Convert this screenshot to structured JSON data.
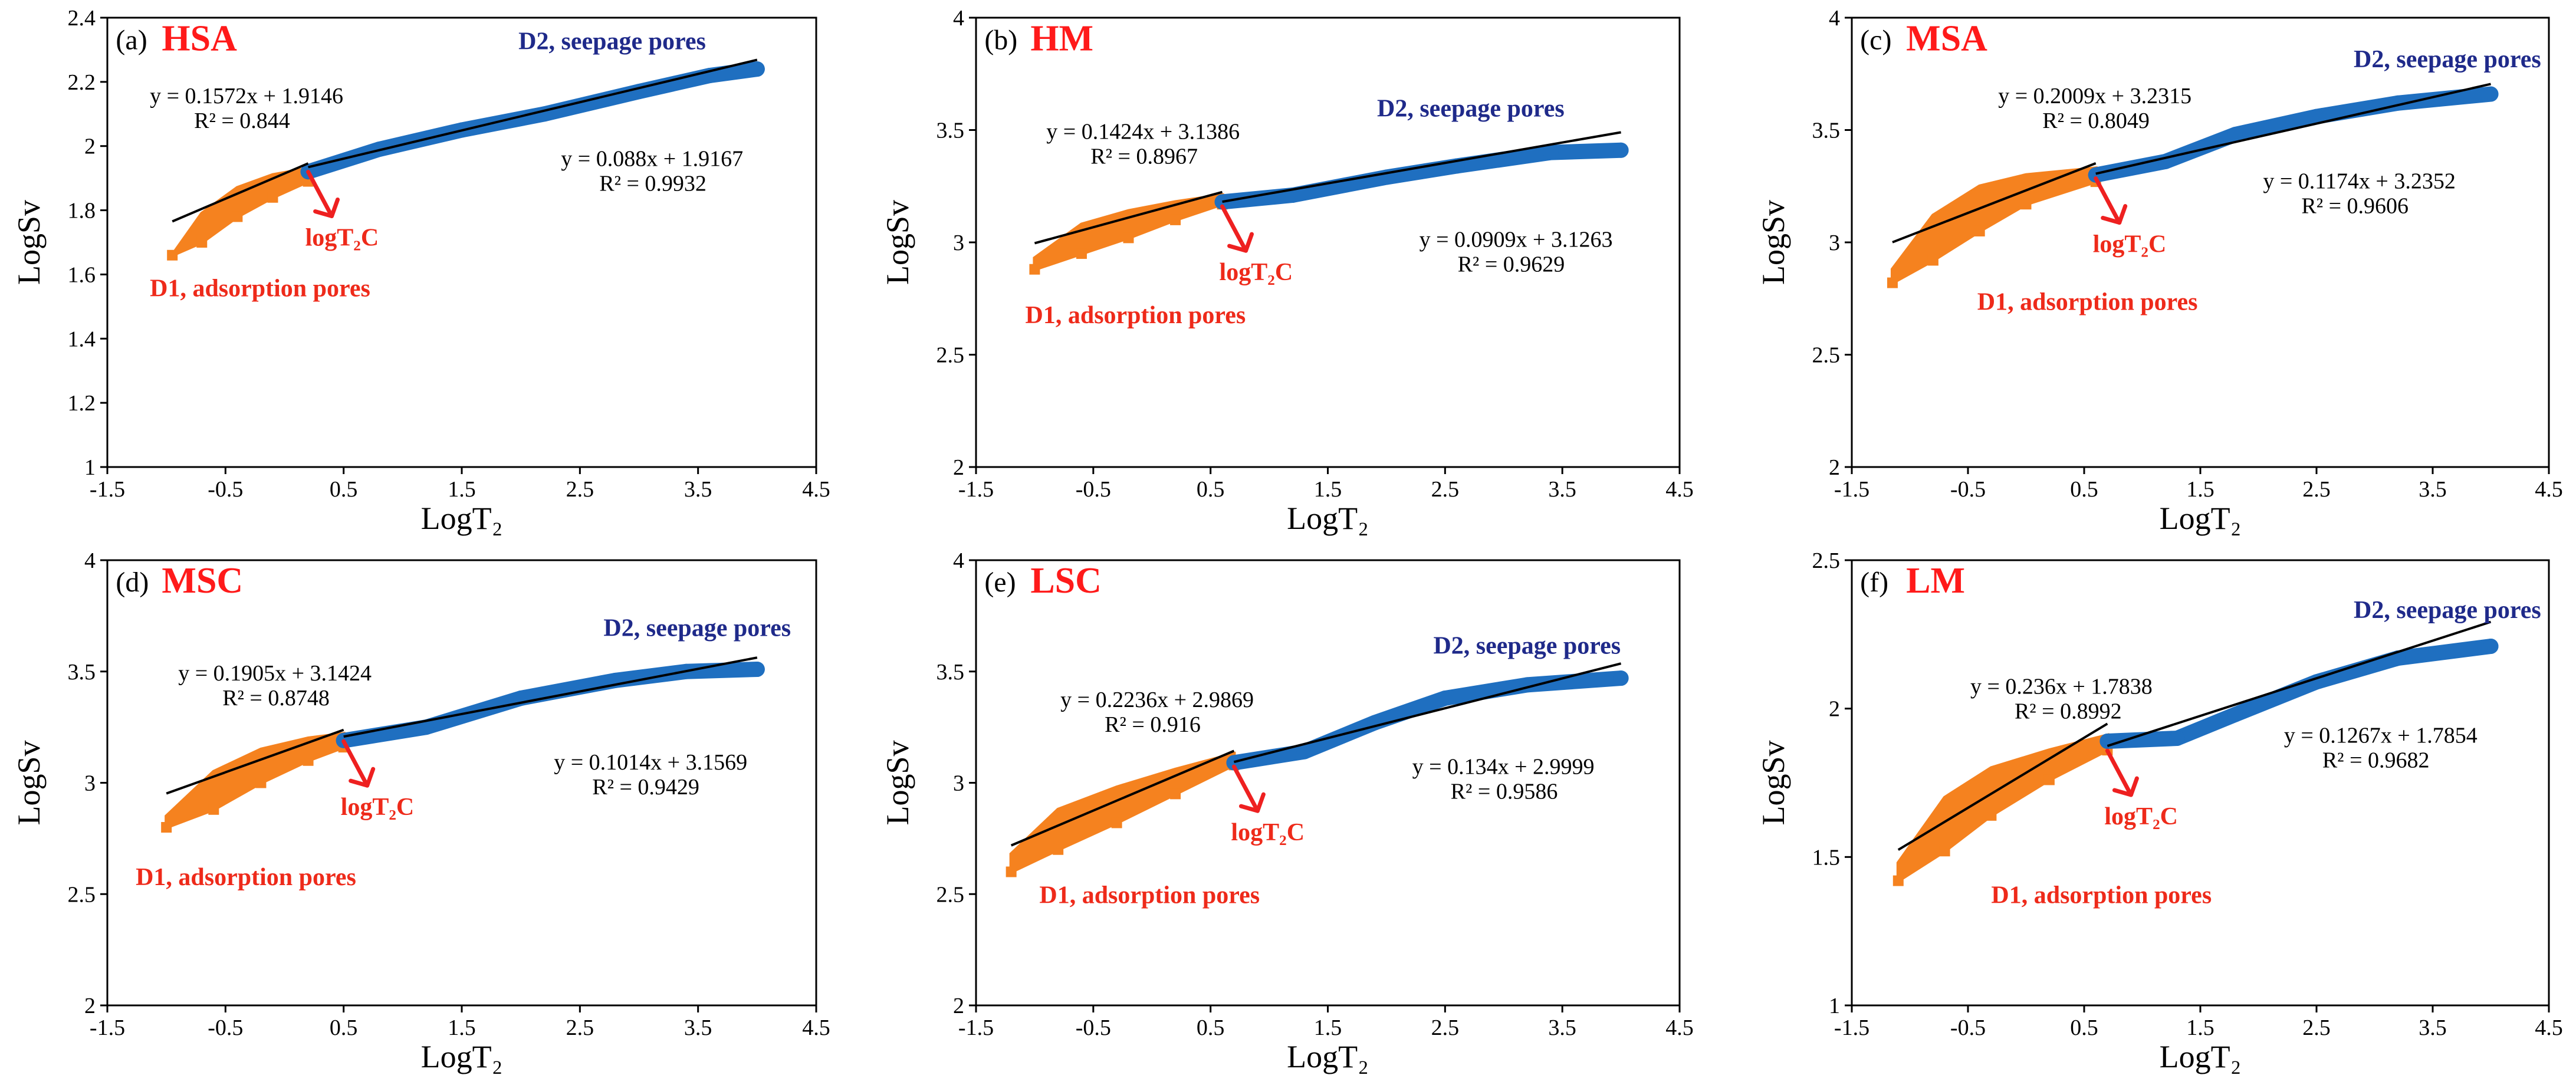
{
  "chart_data": [
    {
      "type": "scatter",
      "panel_label": "(a)",
      "title": "HSA",
      "xlabel": "LogT₂",
      "ylabel": "LogSv",
      "xlim": [
        -1.5,
        4.5
      ],
      "ylim": [
        1,
        2.4
      ],
      "xticks": [
        "-1.5",
        "-0.5",
        "0.5",
        "1.5",
        "2.5",
        "3.5",
        "4.5"
      ],
      "yticks": [
        "1",
        "1.2",
        "1.4",
        "1.6",
        "1.8",
        "2",
        "2.2",
        "2.4"
      ],
      "break_x": 0.2,
      "series": [
        {
          "name": "D1, adsorption pores",
          "color": "#f5821f",
          "x": [
            -0.95,
            -0.7,
            -0.4,
            -0.1,
            0.2
          ],
          "y": [
            1.66,
            1.79,
            1.87,
            1.91,
            1.93
          ],
          "y_low": [
            1.66,
            1.7,
            1.78,
            1.84,
            1.89
          ]
        },
        {
          "name": "D2, seepage pores",
          "color": "#1f6fc0",
          "x": [
            0.2,
            0.8,
            1.5,
            2.2,
            3.0,
            3.6,
            4.0
          ],
          "y": [
            1.92,
            1.99,
            2.05,
            2.1,
            2.17,
            2.22,
            2.24
          ]
        }
      ],
      "fits": [
        {
          "slope": 0.1572,
          "intercept": 1.9146,
          "x_range": [
            -0.95,
            0.2
          ],
          "equation": "y = 0.1572x + 1.9146",
          "r2": "R² = 0.844"
        },
        {
          "slope": 0.088,
          "intercept": 1.9167,
          "x_range": [
            0.2,
            4.0
          ],
          "equation": "y = 0.088x + 1.9167",
          "r2": "R² = 0.9932"
        }
      ],
      "d2_label": "D2,  seepage pores",
      "d1_label": "D1,  adsorption pores",
      "tc_label": "logT₂C"
    },
    {
      "type": "scatter",
      "panel_label": "(b)",
      "title": "HM",
      "xlabel": "LogT₂",
      "ylabel": "LogSv",
      "xlim": [
        -1.5,
        4.5
      ],
      "ylim": [
        2,
        4
      ],
      "xticks": [
        "-1.5",
        "-0.5",
        "0.5",
        "1.5",
        "2.5",
        "3.5",
        "4.5"
      ],
      "yticks": [
        "2",
        "2.5",
        "3",
        "3.5",
        "4"
      ],
      "break_x": 0.6,
      "series": [
        {
          "name": "D1, adsorption pores",
          "color": "#f5821f",
          "x": [
            -1.0,
            -0.6,
            -0.2,
            0.2,
            0.6
          ],
          "y": [
            2.93,
            3.08,
            3.14,
            3.18,
            3.21
          ],
          "y_low": [
            2.88,
            2.95,
            3.02,
            3.1,
            3.17
          ]
        },
        {
          "name": "D2, seepage pores",
          "color": "#1f6fc0",
          "x": [
            0.6,
            1.2,
            2.0,
            2.6,
            3.4,
            4.0
          ],
          "y": [
            3.18,
            3.21,
            3.29,
            3.34,
            3.4,
            3.41
          ]
        }
      ],
      "fits": [
        {
          "slope": 0.1424,
          "intercept": 3.1386,
          "x_range": [
            -1.0,
            0.6
          ],
          "equation": "y = 0.1424x + 3.1386",
          "r2": "R² = 0.8967"
        },
        {
          "slope": 0.0909,
          "intercept": 3.1263,
          "x_range": [
            0.6,
            4.0
          ],
          "equation": "y = 0.0909x + 3.1263",
          "r2": "R² = 0.9629"
        }
      ],
      "d2_label": "D2,  seepage pores",
      "d1_label": "D1,  adsorption pores",
      "tc_label": "logT₂C"
    },
    {
      "type": "scatter",
      "panel_label": "(c)",
      "title": "MSA",
      "xlabel": "LogT₂",
      "ylabel": "LogSv",
      "xlim": [
        -1.5,
        4.5
      ],
      "ylim": [
        2,
        4
      ],
      "xticks": [
        "-1.5",
        "-0.5",
        "0.5",
        "1.5",
        "2.5",
        "3.5",
        "4.5"
      ],
      "yticks": [
        "2",
        "2.5",
        "3",
        "3.5",
        "4"
      ],
      "break_x": 0.6,
      "series": [
        {
          "name": "D1, adsorption pores",
          "color": "#f5821f",
          "x": [
            -1.15,
            -0.8,
            -0.4,
            0.0,
            0.6
          ],
          "y": [
            2.88,
            3.12,
            3.25,
            3.3,
            3.33
          ],
          "y_low": [
            2.82,
            2.92,
            3.05,
            3.17,
            3.27
          ]
        },
        {
          "name": "D2, seepage pores",
          "color": "#1f6fc0",
          "x": [
            0.6,
            1.2,
            1.8,
            2.5,
            3.2,
            4.0
          ],
          "y": [
            3.3,
            3.36,
            3.48,
            3.56,
            3.62,
            3.66
          ]
        }
      ],
      "fits": [
        {
          "slope": 0.2009,
          "intercept": 3.2315,
          "x_range": [
            -1.15,
            0.6
          ],
          "equation": "y = 0.2009x + 3.2315",
          "r2": "R² = 0.8049"
        },
        {
          "slope": 0.1174,
          "intercept": 3.2352,
          "x_range": [
            0.6,
            4.0
          ],
          "equation": "y = 0.1174x + 3.2352",
          "r2": "R² = 0.9606"
        }
      ],
      "d2_label": "D2,  seepage pores",
      "d1_label": "D1,  adsorption pores",
      "tc_label": "logT₂C"
    },
    {
      "type": "scatter",
      "panel_label": "(d)",
      "title": "MSC",
      "xlabel": "LogT₂",
      "ylabel": "LogSv",
      "xlim": [
        -1.5,
        4.5
      ],
      "ylim": [
        2,
        4
      ],
      "xticks": [
        "-1.5",
        "-0.5",
        "0.5",
        "1.5",
        "2.5",
        "3.5",
        "4.5"
      ],
      "yticks": [
        "2",
        "2.5",
        "3",
        "3.5",
        "4"
      ],
      "break_x": 0.5,
      "series": [
        {
          "name": "D1, adsorption pores",
          "color": "#f5821f",
          "x": [
            -1.0,
            -0.6,
            -0.2,
            0.2,
            0.5
          ],
          "y": [
            2.85,
            3.05,
            3.15,
            3.2,
            3.22
          ],
          "y_low": [
            2.8,
            2.88,
            3.0,
            3.1,
            3.16
          ]
        },
        {
          "name": "D2, seepage pores",
          "color": "#1f6fc0",
          "x": [
            0.5,
            1.2,
            2.0,
            2.8,
            3.4,
            4.0
          ],
          "y": [
            3.19,
            3.25,
            3.38,
            3.46,
            3.5,
            3.51
          ]
        }
      ],
      "fits": [
        {
          "slope": 0.1905,
          "intercept": 3.1424,
          "x_range": [
            -1.0,
            0.5
          ],
          "equation": "y = 0.1905x + 3.1424",
          "r2": "R² = 0.8748"
        },
        {
          "slope": 0.1014,
          "intercept": 3.1569,
          "x_range": [
            0.5,
            4.0
          ],
          "equation": "y = 0.1014x + 3.1569",
          "r2": "R² = 0.9429"
        }
      ],
      "d2_label": "D2,  seepage pores",
      "d1_label": "D1,  adsorption pores",
      "tc_label": "logT₂C"
    },
    {
      "type": "scatter",
      "panel_label": "(e)",
      "title": "LSC",
      "xlabel": "LogT₂",
      "ylabel": "LogSv",
      "xlim": [
        -1.5,
        4.5
      ],
      "ylim": [
        2,
        4
      ],
      "xticks": [
        "-1.5",
        "-0.5",
        "0.5",
        "1.5",
        "2.5",
        "3.5",
        "4.5"
      ],
      "yticks": [
        "2",
        "2.5",
        "3",
        "3.5",
        "4"
      ],
      "break_x": 0.7,
      "series": [
        {
          "name": "D1, adsorption pores",
          "color": "#f5821f",
          "x": [
            -1.2,
            -0.8,
            -0.3,
            0.2,
            0.7
          ],
          "y": [
            2.68,
            2.88,
            2.98,
            3.06,
            3.13
          ],
          "y_low": [
            2.6,
            2.7,
            2.82,
            2.95,
            3.08
          ]
        },
        {
          "name": "D2, seepage pores",
          "color": "#1f6fc0",
          "x": [
            0.7,
            1.3,
            1.9,
            2.5,
            3.2,
            4.0
          ],
          "y": [
            3.09,
            3.14,
            3.27,
            3.38,
            3.44,
            3.47
          ]
        }
      ],
      "fits": [
        {
          "slope": 0.2236,
          "intercept": 2.9869,
          "x_range": [
            -1.2,
            0.7
          ],
          "equation": "y = 0.2236x + 2.9869",
          "r2": "R² = 0.916"
        },
        {
          "slope": 0.134,
          "intercept": 2.9999,
          "x_range": [
            0.7,
            4.0
          ],
          "equation": "y = 0.134x + 2.9999",
          "r2": "R² = 0.9586"
        }
      ],
      "d2_label": "D2,  seepage pores",
      "d1_label": "D1,  adsorption pores",
      "tc_label": "logT₂C"
    },
    {
      "type": "scatter",
      "panel_label": "(f)",
      "title": "LM",
      "xlabel": "LogT₂",
      "ylabel": "LogSv",
      "xlim": [
        -1.5,
        4.5
      ],
      "ylim": [
        1,
        2.5
      ],
      "xticks": [
        "-1.5",
        "-0.5",
        "0.5",
        "1.5",
        "2.5",
        "3.5",
        "4.5"
      ],
      "yticks": [
        "1",
        "1.5",
        "2",
        "2.5"
      ],
      "break_x": 0.7,
      "series": [
        {
          "name": "D1, adsorption pores",
          "color": "#f5821f",
          "x": [
            -1.1,
            -0.7,
            -0.3,
            0.2,
            0.7
          ],
          "y": [
            1.48,
            1.7,
            1.8,
            1.86,
            1.91
          ],
          "y_low": [
            1.42,
            1.52,
            1.64,
            1.76,
            1.86
          ]
        },
        {
          "name": "D2, seepage pores",
          "color": "#1f6fc0",
          "x": [
            0.7,
            1.3,
            1.8,
            2.5,
            3.2,
            4.0
          ],
          "y": [
            1.89,
            1.9,
            1.98,
            2.09,
            2.17,
            2.21
          ]
        }
      ],
      "fits": [
        {
          "slope": 0.236,
          "intercept": 1.7838,
          "x_range": [
            -1.1,
            0.7
          ],
          "equation": "y = 0.236x + 1.7838",
          "r2": "R² = 0.8992"
        },
        {
          "slope": 0.1267,
          "intercept": 1.7854,
          "x_range": [
            0.7,
            4.0
          ],
          "equation": "y = 0.1267x + 1.7854",
          "r2": "R² = 0.9682"
        }
      ],
      "d2_label": "D2,  seepage pores",
      "d1_label": "D1,  adsorption pores",
      "tc_label": "logT₂C"
    }
  ]
}
